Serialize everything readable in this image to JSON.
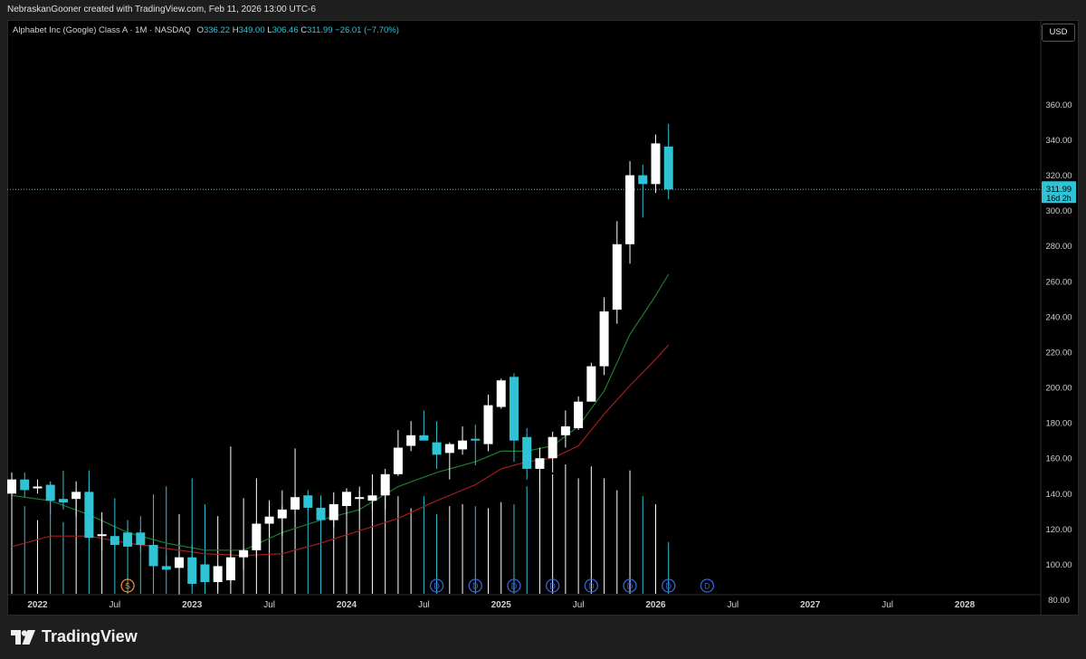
{
  "header": {
    "credit": "NebraskanGooner created with TradingView.com, Feb 11, 2026 13:00 UTC-6"
  },
  "legend": {
    "symbol": "Alphabet Inc (Google) Class A · 1M · NASDAQ",
    "o_label": "O",
    "o_value": "336.22",
    "h_label": "H",
    "h_value": "349.00",
    "l_label": "L",
    "l_value": "306.46",
    "c_label": "C",
    "c_value": "311.99",
    "change": "−26.01 (−7.70%)"
  },
  "currency_button": "USD",
  "footer": {
    "logo_text": "TradingView"
  },
  "chart_data": {
    "type": "candlestick",
    "ylim": [
      70,
      375
    ],
    "yticks": [
      80,
      100,
      120,
      140,
      160,
      180,
      200,
      220,
      240,
      260,
      280,
      300,
      320,
      340,
      360
    ],
    "ytick_labels": [
      "80.00",
      "100.00",
      "120.00",
      "140.00",
      "160.00",
      "180.00",
      "200.00",
      "220.00",
      "240.00",
      "260.00",
      "280.00",
      "300.00",
      "320.00",
      "340.00",
      "360.00"
    ],
    "last_price": 311.99,
    "last_price_label": "311.99",
    "countdown_label": "16d 2h",
    "x_tick_labels": [
      {
        "label": "2022",
        "index": 2,
        "year": true
      },
      {
        "label": "Jul",
        "index": 8,
        "year": false
      },
      {
        "label": "2023",
        "index": 14,
        "year": true
      },
      {
        "label": "Jul",
        "index": 20,
        "year": false
      },
      {
        "label": "2024",
        "index": 26,
        "year": true
      },
      {
        "label": "Jul",
        "index": 32,
        "year": false
      },
      {
        "label": "2025",
        "index": 38,
        "year": true
      },
      {
        "label": "Jul",
        "index": 44,
        "year": false
      },
      {
        "label": "2026",
        "index": 50,
        "year": true
      },
      {
        "label": "Jul",
        "index": 56,
        "year": false
      },
      {
        "label": "2027",
        "index": 62,
        "year": true
      },
      {
        "label": "Jul",
        "index": 68,
        "year": false
      },
      {
        "label": "2028",
        "index": 74,
        "year": true
      }
    ],
    "candles": [
      {
        "o": 140,
        "h": 152,
        "l": 136,
        "c": 148
      },
      {
        "o": 148,
        "h": 152,
        "l": 138,
        "c": 142
      },
      {
        "o": 144,
        "h": 148,
        "l": 140,
        "c": 144
      },
      {
        "o": 145,
        "h": 147,
        "l": 128,
        "c": 136
      },
      {
        "o": 137,
        "h": 153,
        "l": 131,
        "c": 135
      },
      {
        "o": 137,
        "h": 147,
        "l": 127,
        "c": 141
      },
      {
        "o": 141,
        "h": 146,
        "l": 114,
        "c": 115
      },
      {
        "o": 117,
        "h": 126,
        "l": 108,
        "c": 117
      },
      {
        "o": 116,
        "h": 122,
        "l": 108,
        "c": 111
      },
      {
        "o": 118,
        "h": 121,
        "l": 110,
        "c": 110
      },
      {
        "o": 118,
        "h": 120,
        "l": 107,
        "c": 111
      },
      {
        "o": 111,
        "h": 114,
        "l": 94,
        "c": 99
      },
      {
        "o": 99,
        "h": 105,
        "l": 97,
        "c": 97
      },
      {
        "o": 98,
        "h": 104,
        "l": 83,
        "c": 104
      },
      {
        "o": 104,
        "h": 111,
        "l": 88,
        "c": 89
      },
      {
        "o": 100,
        "h": 102,
        "l": 89,
        "c": 90
      },
      {
        "o": 90,
        "h": 100,
        "l": 85,
        "c": 99
      },
      {
        "o": 91,
        "h": 108,
        "l": 89,
        "c": 104
      },
      {
        "o": 104,
        "h": 109,
        "l": 97,
        "c": 108
      },
      {
        "o": 108,
        "h": 124,
        "l": 104,
        "c": 123
      },
      {
        "o": 123,
        "h": 133,
        "l": 115,
        "c": 127
      },
      {
        "o": 126,
        "h": 133,
        "l": 116,
        "c": 131
      },
      {
        "o": 131,
        "h": 140,
        "l": 129,
        "c": 138
      },
      {
        "o": 139,
        "h": 142,
        "l": 130,
        "c": 132
      },
      {
        "o": 132,
        "h": 139,
        "l": 120,
        "c": 125
      },
      {
        "o": 125,
        "h": 134,
        "l": 121,
        "c": 134
      },
      {
        "o": 133,
        "h": 143,
        "l": 127,
        "c": 141
      },
      {
        "o": 138,
        "h": 144,
        "l": 130,
        "c": 138
      },
      {
        "o": 136,
        "h": 143,
        "l": 131,
        "c": 139
      },
      {
        "o": 139,
        "h": 154,
        "l": 131,
        "c": 151
      },
      {
        "o": 151,
        "h": 176,
        "l": 150,
        "c": 166
      },
      {
        "o": 167,
        "h": 181,
        "l": 164,
        "c": 173
      },
      {
        "o": 173,
        "h": 187,
        "l": 170,
        "c": 170
      },
      {
        "o": 169,
        "h": 181,
        "l": 154,
        "c": 162
      },
      {
        "o": 163,
        "h": 169,
        "l": 148,
        "c": 168
      },
      {
        "o": 165,
        "h": 178,
        "l": 162,
        "c": 170
      },
      {
        "o": 171,
        "h": 179,
        "l": 156,
        "c": 170
      },
      {
        "o": 168,
        "h": 196,
        "l": 164,
        "c": 190
      },
      {
        "o": 189,
        "h": 205,
        "l": 188,
        "c": 204
      },
      {
        "o": 206,
        "h": 208,
        "l": 158,
        "c": 170
      },
      {
        "o": 172,
        "h": 177,
        "l": 148,
        "c": 154
      },
      {
        "o": 154,
        "h": 166,
        "l": 141,
        "c": 160
      },
      {
        "o": 160,
        "h": 175,
        "l": 152,
        "c": 172
      },
      {
        "o": 173,
        "h": 187,
        "l": 166,
        "c": 178
      },
      {
        "o": 177,
        "h": 195,
        "l": 176,
        "c": 192
      },
      {
        "o": 192,
        "h": 214,
        "l": 193,
        "c": 212
      },
      {
        "o": 212,
        "h": 251,
        "l": 207,
        "c": 243
      },
      {
        "o": 244,
        "h": 294,
        "l": 236,
        "c": 281
      },
      {
        "o": 281,
        "h": 328,
        "l": 270,
        "c": 320
      },
      {
        "o": 320,
        "h": 326,
        "l": 296,
        "c": 315
      },
      {
        "o": 315,
        "h": 343,
        "l": 310,
        "c": 338
      },
      {
        "o": 336.22,
        "h": 349,
        "l": 306.46,
        "c": 311.99
      }
    ],
    "volume_values": [
      48,
      44,
      37,
      56,
      36,
      52,
      62,
      41,
      48,
      37,
      39,
      50,
      54,
      40,
      58,
      45,
      39,
      74,
      48,
      58,
      47,
      52,
      73,
      49,
      46,
      51,
      46,
      52,
      60,
      55,
      49,
      43,
      49,
      40,
      44,
      45,
      44,
      43,
      46,
      45,
      54,
      72,
      60,
      65,
      58,
      64,
      58,
      52,
      62,
      49,
      45,
      26
    ],
    "ma_short": [
      [
        0,
        139
      ],
      [
        3,
        136
      ],
      [
        6,
        128
      ],
      [
        9,
        118
      ],
      [
        12,
        112
      ],
      [
        15,
        108
      ],
      [
        18,
        108
      ],
      [
        21,
        118
      ],
      [
        24,
        125
      ],
      [
        27,
        131
      ],
      [
        30,
        144
      ],
      [
        33,
        152
      ],
      [
        36,
        158
      ],
      [
        38,
        164
      ],
      [
        40,
        164
      ],
      [
        42,
        167
      ],
      [
        44,
        178
      ],
      [
        46,
        198
      ],
      [
        48,
        230
      ],
      [
        50,
        252
      ],
      [
        51,
        264
      ]
    ],
    "ma_long": [
      [
        0,
        110
      ],
      [
        3,
        116
      ],
      [
        6,
        116
      ],
      [
        9,
        112
      ],
      [
        12,
        109
      ],
      [
        15,
        106
      ],
      [
        18,
        105
      ],
      [
        21,
        106
      ],
      [
        24,
        112
      ],
      [
        27,
        119
      ],
      [
        30,
        126
      ],
      [
        33,
        136
      ],
      [
        36,
        145
      ],
      [
        38,
        154
      ],
      [
        40,
        158
      ],
      [
        42,
        160
      ],
      [
        44,
        167
      ],
      [
        46,
        185
      ],
      [
        48,
        201
      ],
      [
        50,
        216
      ],
      [
        51,
        224
      ]
    ],
    "events": [
      {
        "index": 9,
        "type": "split",
        "label": "S"
      },
      {
        "index": 33,
        "type": "dividend",
        "label": "D"
      },
      {
        "index": 36,
        "type": "dividend",
        "label": "D"
      },
      {
        "index": 39,
        "type": "dividend",
        "label": "D"
      },
      {
        "index": 42,
        "type": "dividend",
        "label": "D"
      },
      {
        "index": 45,
        "type": "dividend",
        "label": "D"
      },
      {
        "index": 48,
        "type": "dividend",
        "label": "D"
      },
      {
        "index": 51,
        "type": "dividend",
        "label": "D"
      },
      {
        "index": 54,
        "type": "dividend",
        "label": "D"
      }
    ],
    "colors": {
      "up": "#ffffff",
      "down": "#2fc3d6",
      "ma_short": "#1d7a2b",
      "ma_long": "#a81c1c",
      "split_marker": "#f0892e",
      "dividend_marker": "#3a62d8",
      "price_line": "#2fc3d6"
    }
  }
}
